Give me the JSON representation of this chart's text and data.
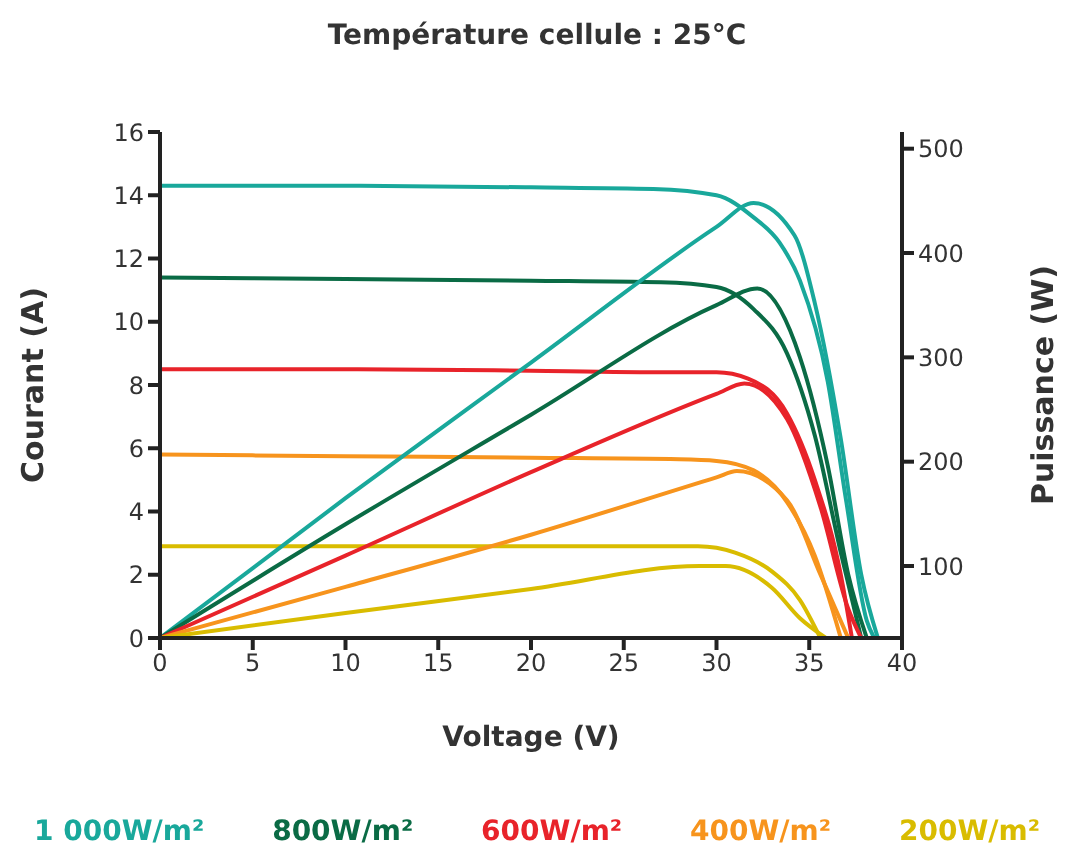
{
  "chart_data": {
    "type": "line",
    "title": "Température cellule : 25°C",
    "xlabel": "Voltage (V)",
    "ylabel": "Courant (A)",
    "y2label": "Puissance (W)",
    "xlim": [
      0,
      40
    ],
    "xticks": [
      0,
      5,
      10,
      15,
      20,
      25,
      30,
      35,
      40
    ],
    "ylim": [
      0,
      16
    ],
    "yticks": [
      0,
      2,
      4,
      6,
      8,
      10,
      12,
      14,
      16
    ],
    "y2lim": [
      31,
      516
    ],
    "y2ticks": [
      100,
      200,
      300,
      400,
      500
    ],
    "legend": "bottom",
    "series": [
      {
        "name": "1 000W/m²",
        "color": "#19a89b",
        "x": [
          0,
          10,
          20,
          26.6,
          30,
          32,
          33.4,
          34.5,
          36,
          37,
          38.1,
          38.5
        ],
        "values": [
          14.3,
          14.3,
          14.25,
          14.2,
          14.0,
          13.3,
          12.5,
          11.3,
          8.1,
          4.3,
          0.55,
          0
        ]
      },
      {
        "name": "800W/m²",
        "color": "#0a6b45",
        "x": [
          0,
          10,
          20,
          27,
          30,
          32,
          33.8,
          35.3,
          36.7,
          37.8
        ],
        "values": [
          11.4,
          11.35,
          11.3,
          11.25,
          11.1,
          10.4,
          9.0,
          6.4,
          2.7,
          0
        ]
      },
      {
        "name": "600W/m²",
        "color": "#e8232a",
        "x": [
          0,
          10,
          20,
          28,
          30,
          31.7,
          33.8,
          35.3,
          36.7,
          37.3
        ],
        "values": [
          8.5,
          8.5,
          8.45,
          8.4,
          8.4,
          8.2,
          7.1,
          5.0,
          2.0,
          0
        ]
      },
      {
        "name": "400W/m²",
        "color": "#f7941d",
        "x": [
          0,
          10,
          20,
          28,
          30,
          32,
          33.8,
          35.3,
          36.7
        ],
        "values": [
          5.8,
          5.75,
          5.7,
          5.65,
          5.6,
          5.3,
          4.3,
          2.6,
          0
        ]
      },
      {
        "name": "200W/m²",
        "color": "#d9bc00",
        "x": [
          0,
          10,
          20,
          29,
          31,
          33,
          34.5,
          35.6
        ],
        "values": [
          2.9,
          2.9,
          2.9,
          2.9,
          2.7,
          2.1,
          1.2,
          0
        ]
      },
      {
        "axis": "y2",
        "color": "#19a89b",
        "x": [
          0,
          10,
          20,
          30,
          32,
          34.2,
          35.3,
          36.7,
          37.8,
          38.7
        ],
        "values": [
          31,
          165,
          295,
          425,
          448,
          417,
          352,
          222,
          92,
          31
        ]
      },
      {
        "axis": "y2",
        "color": "#0a6b45",
        "x": [
          0,
          10,
          20,
          30,
          32.2,
          34.5,
          36,
          37.1,
          38.1
        ],
        "values": [
          31,
          140,
          245,
          350,
          366,
          300,
          196,
          92,
          31
        ]
      },
      {
        "axis": "y2",
        "color": "#e8232a",
        "x": [
          0,
          10,
          20,
          30,
          31.5,
          33.8,
          35.6,
          37.1,
          37.8
        ],
        "values": [
          31,
          110,
          190,
          265,
          275,
          241,
          157,
          59,
          31
        ]
      },
      {
        "axis": "y2",
        "color": "#f7941d",
        "x": [
          0,
          10,
          20,
          30,
          31.1,
          33.8,
          35.6,
          37.1
        ],
        "values": [
          31,
          80,
          130,
          185,
          191,
          163,
          92,
          31
        ]
      },
      {
        "axis": "y2",
        "color": "#d9bc00",
        "x": [
          0,
          10,
          20,
          29.1,
          30.5,
          33,
          34.5,
          35.9
        ],
        "values": [
          31,
          55,
          78,
          100,
          100,
          79,
          50,
          31
        ]
      }
    ]
  }
}
